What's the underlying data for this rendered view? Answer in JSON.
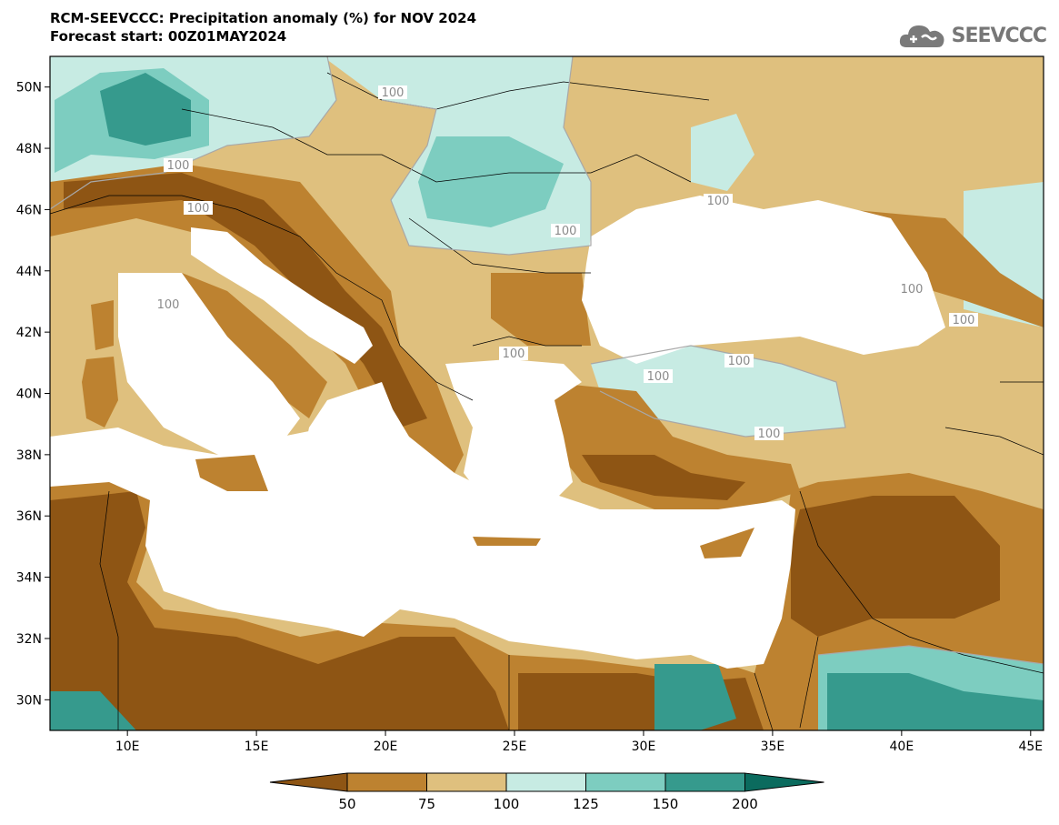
{
  "header": {
    "title": "RCM-SEEVCCC: Precipitation anomaly (%) for NOV 2024",
    "subtitle": "Forecast start: 00Z01MAY2024"
  },
  "logo": {
    "text": "SEEVCCC",
    "icon": "cloud-icon"
  },
  "map": {
    "lon_range": [
      7,
      45.5
    ],
    "lat_range": [
      29,
      51
    ],
    "lat_ticks": [
      "50N",
      "48N",
      "46N",
      "44N",
      "42N",
      "40N",
      "38N",
      "36N",
      "34N",
      "32N",
      "30N"
    ],
    "lon_ticks": [
      "10E",
      "15E",
      "20E",
      "25E",
      "30E",
      "35E",
      "40E",
      "45E"
    ],
    "contour_labels": [
      "100",
      "100",
      "100",
      "100",
      "100",
      "100",
      "100",
      "100",
      "100",
      "100",
      "100",
      "100"
    ]
  },
  "colorbar": {
    "labels": [
      "50",
      "75",
      "100",
      "125",
      "150",
      "200"
    ],
    "colors": [
      "#8e5514",
      "#bd8230",
      "#dfc07e",
      "#c7ebe3",
      "#7dcdc0",
      "#369a8d",
      "#0b6b5e"
    ]
  },
  "colors": {
    "sea": "#ffffff",
    "dry_extreme": "#8e5514",
    "dry": "#bd8230",
    "near_normal_dry": "#dfc07e",
    "near_normal_wet": "#c7ebe3",
    "wet": "#7dcdc0",
    "very_wet": "#369a8d"
  }
}
